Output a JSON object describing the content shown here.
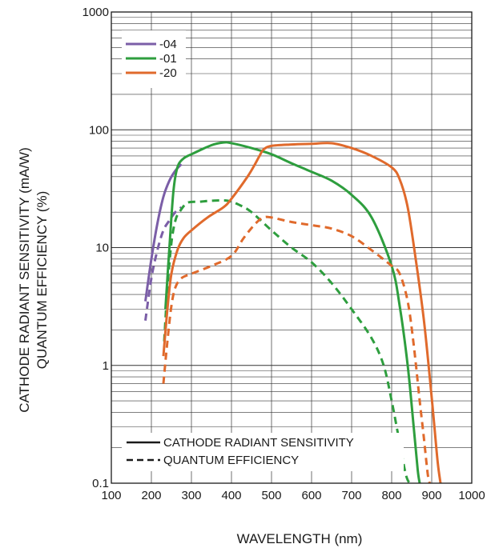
{
  "chart_data": {
    "type": "line",
    "title": "",
    "xlabel": "WAVELENGTH (nm)",
    "ylabel_lines": [
      "CATHODE RADIANT SENSITIVITY (mA/W)",
      "QUANTUM EFFICIENCY (%)"
    ],
    "xlim": [
      100,
      1000
    ],
    "ylim": [
      0.1,
      1000
    ],
    "yscale": "log",
    "grid": true,
    "x_ticks": [
      100,
      200,
      300,
      400,
      500,
      600,
      700,
      800,
      900,
      1000
    ],
    "x_tick_labels": [
      "100",
      "200",
      "300",
      "400",
      "500",
      "600",
      "700",
      "800",
      "900",
      "1000"
    ],
    "y_ticks": [
      0.1,
      1,
      10,
      100,
      1000
    ],
    "y_tick_labels": [
      "0.1",
      "1",
      "10",
      "100",
      "1000"
    ],
    "legend_series": {
      "position": "top-left",
      "entries": [
        {
          "label": "-04",
          "color": "#7b5ea7"
        },
        {
          "label": "-01",
          "color": "#2e9e3e"
        },
        {
          "label": "-20",
          "color": "#e06a2c"
        }
      ]
    },
    "legend_style": {
      "position": "bottom-left",
      "entries": [
        {
          "label": "CATHODE RADIANT SENSITIVITY",
          "style": "solid"
        },
        {
          "label": "QUANTUM EFFICIENCY",
          "style": "dashed"
        }
      ]
    },
    "series": [
      {
        "legend": "-04",
        "metric": "sensitivity",
        "style": "solid",
        "color": "#7b5ea7",
        "x": [
          185,
          200,
          215,
          230,
          245,
          260,
          275
        ],
        "y": [
          3.5,
          8,
          16,
          27,
          37,
          45,
          51
        ]
      },
      {
        "legend": "-04",
        "metric": "quantum_efficiency",
        "style": "dashed",
        "color": "#7b5ea7",
        "x": [
          185,
          200,
          215,
          230,
          245,
          260,
          275
        ],
        "y": [
          2.4,
          5.5,
          9.5,
          14,
          17,
          20,
          22
        ]
      },
      {
        "legend": "-01",
        "metric": "sensitivity",
        "style": "solid",
        "color": "#2e9e3e",
        "x": [
          235,
          245,
          255,
          265,
          280,
          300,
          350,
          380,
          400,
          450,
          500,
          550,
          600,
          650,
          700,
          750,
          800,
          820,
          840,
          855,
          865,
          870
        ],
        "y": [
          3,
          10,
          30,
          48,
          57,
          62,
          74,
          78,
          77,
          70,
          62,
          52,
          44,
          37,
          28,
          18,
          7,
          3.2,
          1,
          0.3,
          0.13,
          0.1
        ]
      },
      {
        "legend": "-01",
        "metric": "quantum_efficiency",
        "style": "dashed",
        "color": "#2e9e3e",
        "x": [
          232,
          240,
          250,
          260,
          270,
          290,
          320,
          350,
          390,
          420,
          450,
          500,
          550,
          600,
          650,
          700,
          750,
          780,
          800,
          820,
          835,
          845,
          852
        ],
        "y": [
          1.6,
          4.5,
          11,
          17,
          20,
          24,
          24.5,
          25,
          25,
          23,
          20,
          14,
          10,
          7.5,
          5,
          3,
          1.7,
          1,
          0.5,
          0.22,
          0.12,
          0.1,
          0.1
        ]
      },
      {
        "legend": "-20",
        "metric": "sensitivity",
        "style": "solid",
        "color": "#e06a2c",
        "x": [
          230,
          240,
          250,
          265,
          280,
          300,
          340,
          380,
          400,
          440,
          460,
          470,
          480,
          500,
          550,
          600,
          650,
          700,
          750,
          800,
          820,
          840,
          860,
          880,
          895,
          905,
          915,
          922
        ],
        "y": [
          1.2,
          3,
          6,
          9.5,
          12,
          14,
          18,
          22,
          26,
          40,
          52,
          60,
          68,
          73,
          75,
          76,
          77,
          70,
          60,
          48,
          38,
          22,
          8,
          2.5,
          0.8,
          0.35,
          0.15,
          0.1
        ]
      },
      {
        "legend": "-20",
        "metric": "quantum_efficiency",
        "style": "dashed",
        "color": "#e06a2c",
        "x": [
          230,
          240,
          250,
          260,
          275,
          300,
          350,
          400,
          430,
          460,
          480,
          500,
          550,
          600,
          650,
          700,
          750,
          800,
          820,
          840,
          855,
          870,
          880,
          890,
          895
        ],
        "y": [
          0.7,
          1.6,
          3.2,
          4.6,
          5.5,
          6,
          7,
          8.5,
          12,
          16,
          18,
          18,
          16.5,
          15.5,
          14.5,
          12.5,
          9.5,
          7,
          6,
          3.5,
          1.5,
          0.5,
          0.25,
          0.12,
          0.1
        ]
      }
    ]
  }
}
